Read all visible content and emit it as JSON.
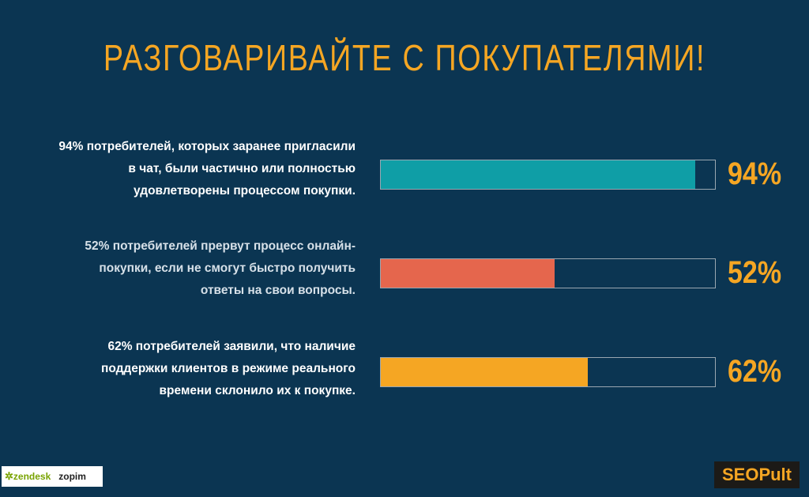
{
  "title": "РАЗГОВАРИВАЙТЕ С ПОКУПАТЕЛЯМИ!",
  "colors": {
    "background": "#0b3552",
    "accent": "#f5a623",
    "bar_teal": "#0f9ea6",
    "bar_red": "#e5664d",
    "bar_orange": "#f5a623"
  },
  "chart_data": {
    "type": "bar",
    "orientation": "horizontal",
    "xlim": [
      0,
      100
    ],
    "bars": [
      {
        "description": [
          "94% потребителей, которых заранее пригласили",
          "в чат, были частично или полностью",
          "удовлетворены процессом покупки."
        ],
        "value": 94,
        "label": "94%",
        "color": "#0f9ea6"
      },
      {
        "description": [
          "52% потребителей прервут процесс онлайн-",
          "покупки, если не смогут быстро получить",
          "ответы на свои вопросы."
        ],
        "value": 52,
        "label": "52%",
        "color": "#e5664d"
      },
      {
        "description": [
          "62% потребителей заявили, что наличие",
          "поддержки клиентов в режиме реального",
          "времени склонило их к покупке."
        ],
        "value": 62,
        "label": "62%",
        "color": "#f5a623"
      }
    ]
  },
  "logos": {
    "zendesk": "zendesk",
    "zendesk_icon": "gear-icon",
    "zopim": "zopim",
    "seopult": "SEOPult"
  }
}
